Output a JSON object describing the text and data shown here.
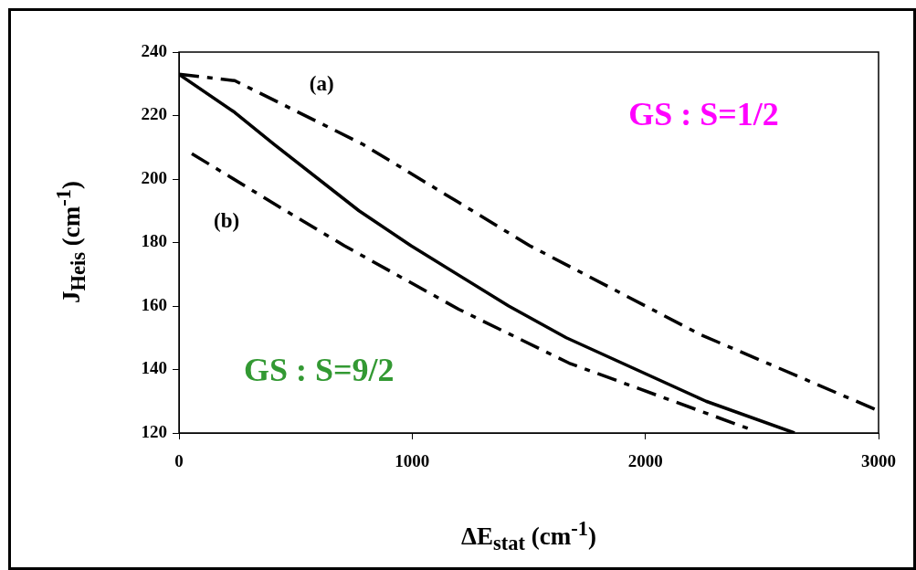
{
  "chart_data": {
    "type": "line",
    "xlabel": "ΔE$_{stat}$ (cm$^{-1}$)",
    "ylabel": "J$_{Heis}$ (cm$^{-1}$)",
    "xlim": [
      0,
      3000
    ],
    "xticks": [
      0,
      1000,
      2000,
      3000
    ],
    "ylim": [
      120,
      240
    ],
    "yticks": [
      120,
      140,
      160,
      180,
      200,
      220,
      240
    ],
    "grid": false,
    "legend": false,
    "marker": "none",
    "series": [
      {
        "color": "#000000",
        "line_style": "solid",
        "x": [
          0,
          239,
          407,
          772,
          995,
          1414,
          1661,
          2260,
          2640
        ],
        "values": [
          233,
          221,
          211,
          190,
          179,
          160,
          150,
          130,
          120
        ]
      },
      {
        "color": "#000000",
        "line_style": "dashed",
        "x": [
          0,
          239,
          787,
          1191,
          1504,
          2236,
          3000
        ],
        "values": [
          233,
          231,
          211,
          193,
          179,
          151,
          127
        ]
      },
      {
        "color": "#000000",
        "line_style": "dashed",
        "x": [
          55,
          458,
          709,
          1199,
          1673,
          2456
        ],
        "values": [
          208,
          190,
          179,
          159,
          142,
          121
        ]
      }
    ],
    "annotations": [
      "(a)",
      "(b)",
      "GS : S=1/2",
      "GS : S=9/2"
    ]
  }
}
